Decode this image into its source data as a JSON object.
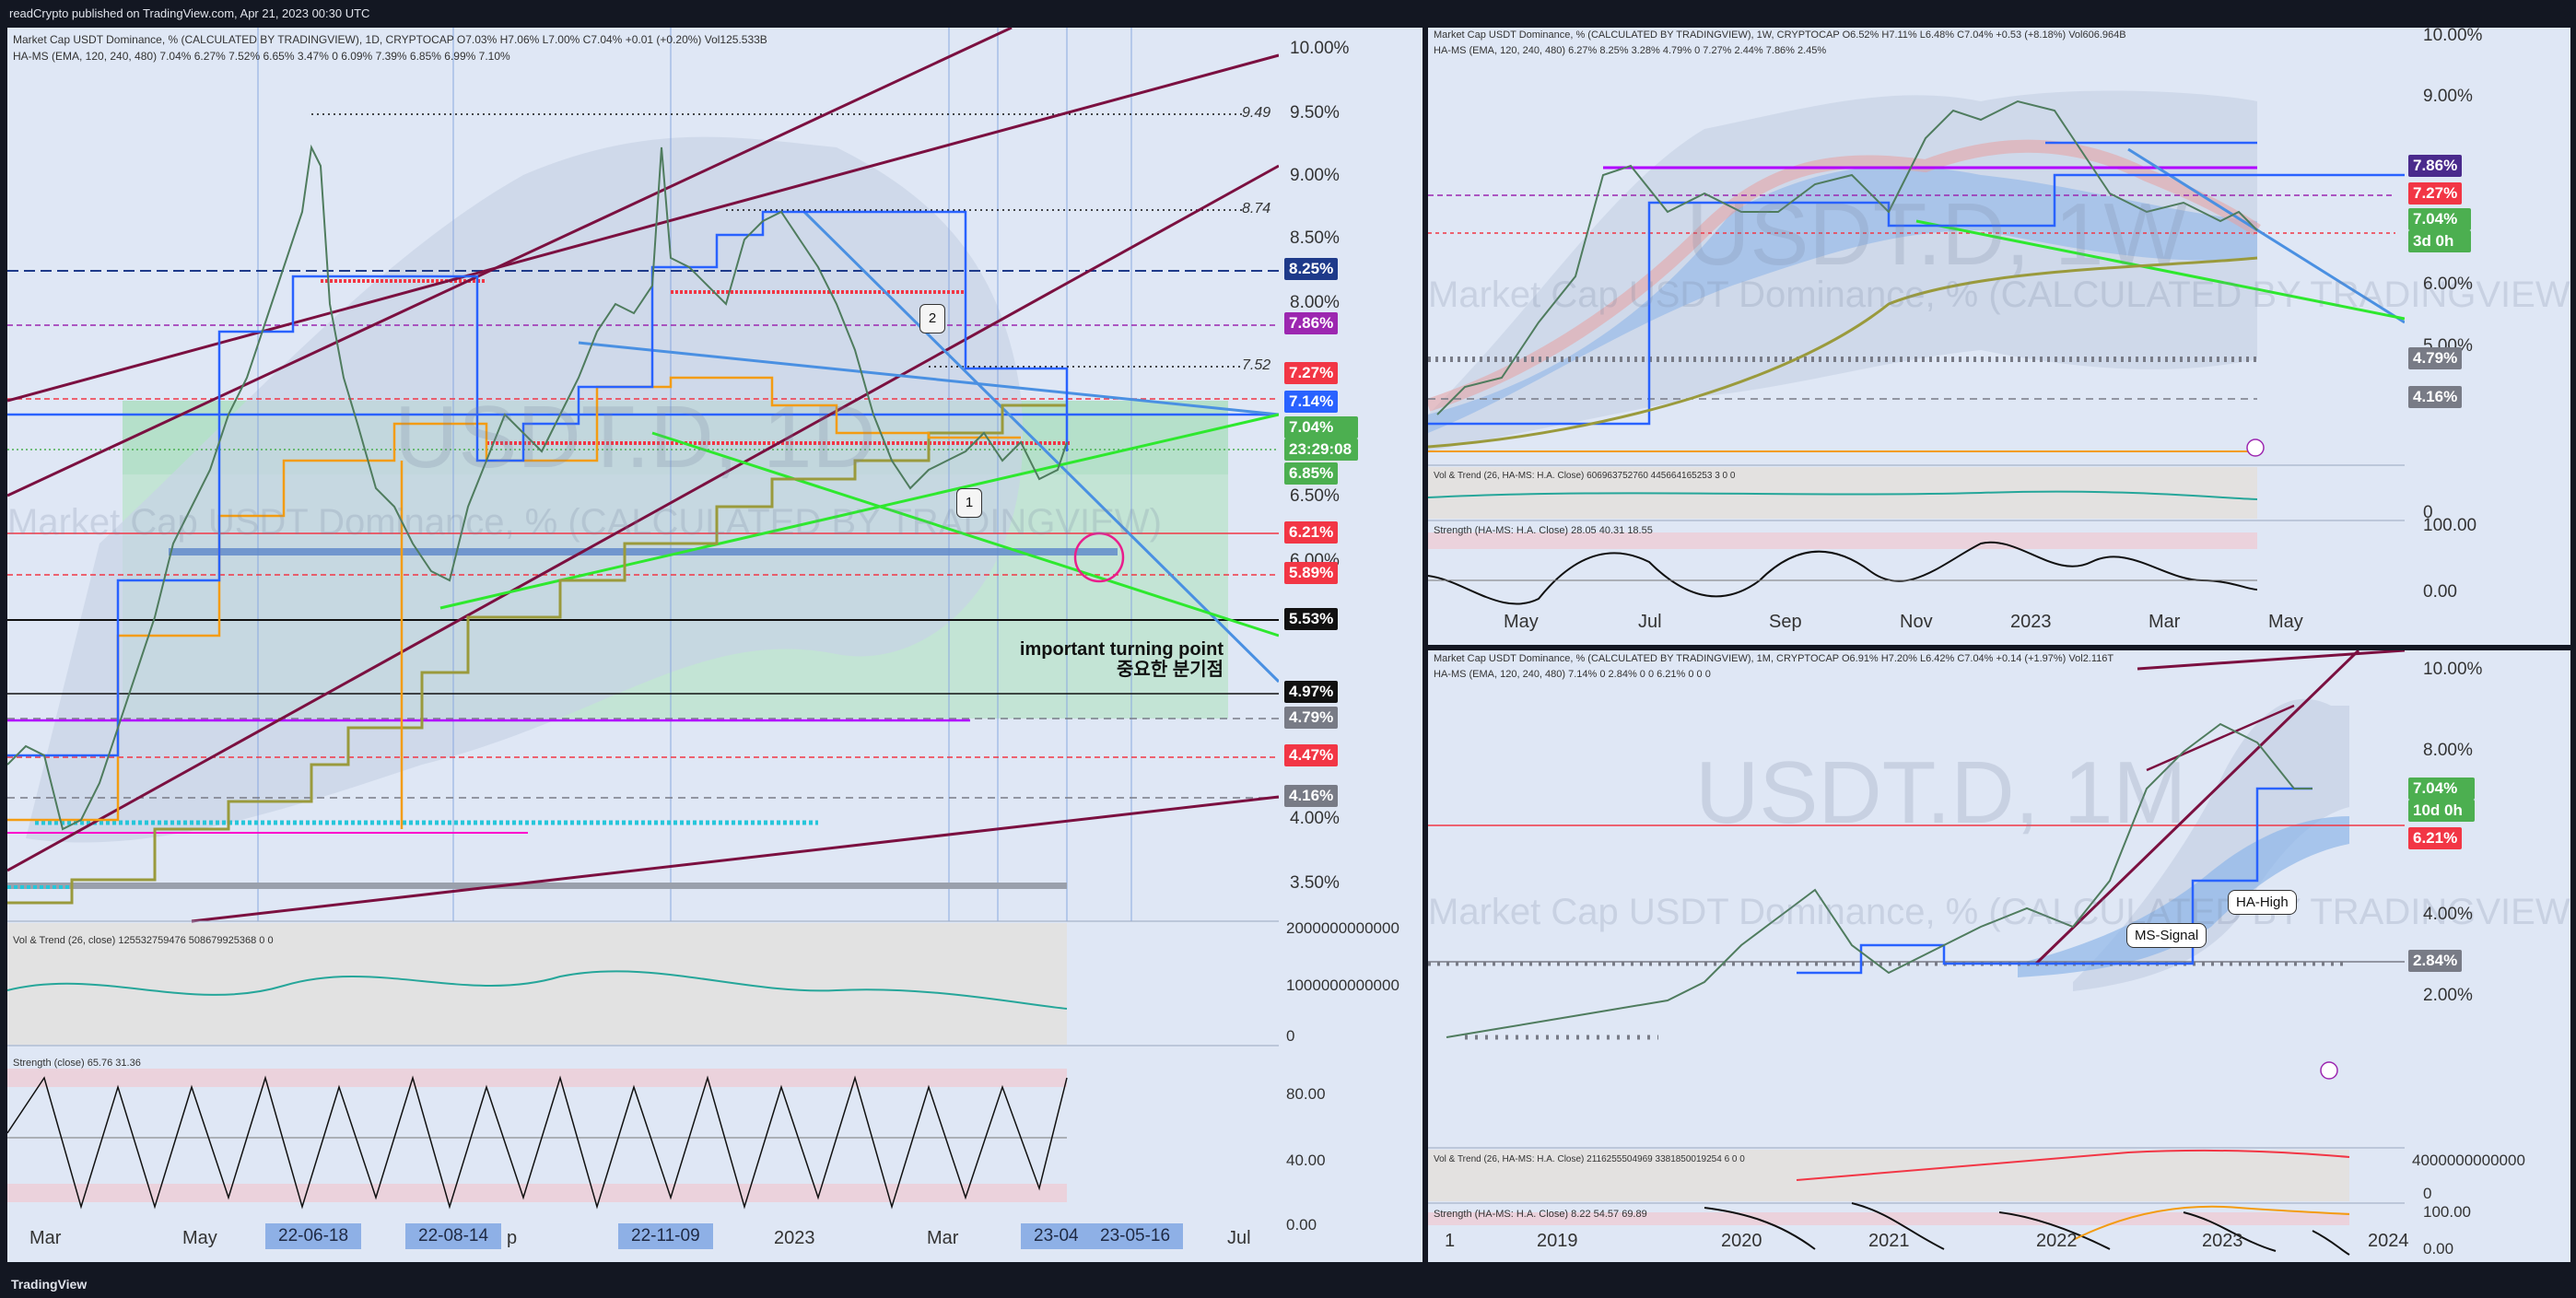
{
  "header": {
    "published": "readCrypto published on TradingView.com, Apr 21, 2023 00:30 UTC"
  },
  "footer": {
    "brand": "TradingView"
  },
  "colors": {
    "bg": "#131722",
    "pane": "#dfe7f5",
    "accent": "#2962ff",
    "red": "#f23645",
    "green": "#4caf50"
  },
  "daily": {
    "legend1": "Market Cap USDT Dominance, % (CALCULATED BY TRADINGVIEW), 1D, CRYPTOCAP  O7.03%  H7.06%  L7.00%  C7.04% +0.01 (+0.20%)  Vol125.533B",
    "legend2": "HA-MS (EMA, 120, 240, 480)  7.04%  6.27%  7.52%  6.65%  3.47%  0  6.09%  7.39%  6.85%  6.99%  7.10%",
    "watermark1": "USDT.D, 1D",
    "watermark2": "Market Cap USDT Dominance, % (CALCULATED BY TRADINGVIEW)",
    "y_ticks": [
      "10.00%",
      "9.50%",
      "9.00%",
      "8.50%",
      "8.00%",
      "6.50%",
      "6.00%",
      "4.00%",
      "3.50%"
    ],
    "right_labels": [
      {
        "text": "8.25%",
        "bg": "#1e3a8a"
      },
      {
        "text": "7.86%",
        "bg": "#9c27b0"
      },
      {
        "text": "7.27%",
        "bg": "#f23645"
      },
      {
        "text": "7.14%",
        "bg": "#2962ff"
      },
      {
        "text": "7.04%",
        "bg": "#4caf50"
      },
      {
        "text": "23:29:08",
        "bg": "#4caf50"
      },
      {
        "text": "6.85%",
        "bg": "#4caf50"
      },
      {
        "text": "6.21%",
        "bg": "#f23645"
      },
      {
        "text": "5.89%",
        "bg": "#f23645"
      },
      {
        "text": "5.53%",
        "bg": "#111111"
      },
      {
        "text": "4.97%",
        "bg": "#111111"
      },
      {
        "text": "4.79%",
        "bg": "#787b86"
      },
      {
        "text": "4.47%",
        "bg": "#f23645"
      },
      {
        "text": "4.16%",
        "bg": "#787b86"
      }
    ],
    "level_labels": [
      "9.49",
      "8.74",
      "7.52"
    ],
    "annotation": [
      "important turning point",
      "중요한 분기점"
    ],
    "markers": [
      "1",
      "2"
    ],
    "vol_legend": "Vol & Trend (26, close)  125532759476  508679925368  0  0",
    "vol_ticks": [
      "2000000000000",
      "1000000000000",
      "0"
    ],
    "strength_legend": "Strength (close)  65.76  31.36",
    "strength_ticks": [
      "80.00",
      "40.00",
      "0.00"
    ],
    "x_labels": [
      "Mar",
      "May",
      "p",
      "2023",
      "Mar",
      "Jul"
    ],
    "x_badges": [
      "22-06-18",
      "22-08-14",
      "22-11-09",
      "23-04",
      "23-05-16"
    ]
  },
  "weekly": {
    "legend1": "Market Cap USDT Dominance, % (CALCULATED BY TRADINGVIEW), 1W, CRYPTOCAP  O6.52%  H7.11%  L6.48%  C7.04% +0.53 (+8.18%)  Vol606.964B",
    "legend2": "HA-MS (EMA, 120, 240, 480)  6.27%  8.25%  3.28%  4.79%  0  7.27%  2.44%  7.86%  2.45%",
    "watermark1": "USDT.D, 1W",
    "watermark2": "Market Cap USDT Dominance, % (CALCULATED BY TRADINGVIEW)",
    "y_ticks": [
      "10.00%",
      "9.00%",
      "6.00%",
      "5.00%",
      "0"
    ],
    "right_labels": [
      {
        "text": "7.86%",
        "bg": "#4a2a8c"
      },
      {
        "text": "7.27%",
        "bg": "#f23645"
      },
      {
        "text": "7.04%",
        "bg": "#4caf50"
      },
      {
        "text": "3d 0h",
        "bg": "#4caf50"
      },
      {
        "text": "4.79%",
        "bg": "#787b86"
      },
      {
        "text": "4.16%",
        "bg": "#787b86"
      }
    ],
    "vol_legend": "Vol & Trend (26, HA-MS: H.A. Close)  606963752760  445664165253 3  0  0",
    "strength_legend": "Strength (HA-MS: H.A. Close)  28.05  40.31  18.55",
    "strength_ticks": [
      "100.00",
      "0.00"
    ],
    "x_labels": [
      "May",
      "Jul",
      "Sep",
      "Nov",
      "2023",
      "Mar",
      "May"
    ]
  },
  "monthly": {
    "legend1": "Market Cap USDT Dominance, % (CALCULATED BY TRADINGVIEW), 1M, CRYPTOCAP  O6.91%  H7.20%  L6.42%  C7.04% +0.14 (+1.97%)  Vol2.116T",
    "legend2": "HA-MS (EMA, 120, 240, 480)  7.14%  0  2.84%  0  0  6.21%  0  0  0",
    "watermark1": "USDT.D, 1M",
    "watermark2": "Market Cap USDT Dominance, % (CALCULATED BY TRADINGVIEW)",
    "y_ticks": [
      "10.00%",
      "8.00%",
      "4.00%",
      "2.00%"
    ],
    "right_labels": [
      {
        "text": "7.04%",
        "bg": "#4caf50"
      },
      {
        "text": "10d 0h",
        "bg": "#4caf50"
      },
      {
        "text": "6.21%",
        "bg": "#f23645"
      },
      {
        "text": "2.84%",
        "bg": "#787b86"
      }
    ],
    "callouts": [
      "HA-High",
      "MS-Signal"
    ],
    "vol_legend": "Vol & Trend (26, HA-MS: H.A. Close)  2116255504969  3381850019254 6  0  0",
    "vol_ticks": [
      "4000000000000",
      "0"
    ],
    "strength_legend": "Strength (HA-MS: H.A. Close)  8.22  54.57  69.89",
    "strength_ticks": [
      "100.00",
      "0.00"
    ],
    "x_labels": [
      "1",
      "2019",
      "2020",
      "2021",
      "2022",
      "2023",
      "2024"
    ]
  }
}
